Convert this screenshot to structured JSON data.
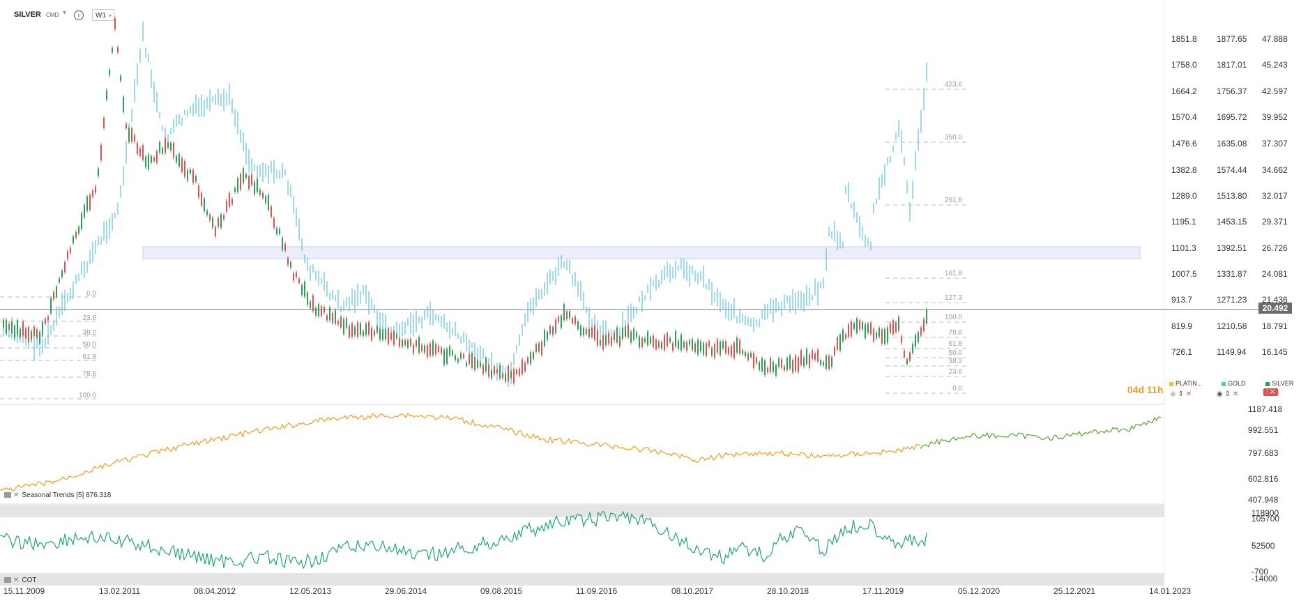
{
  "header": {
    "symbol": "SILVER",
    "market": "CMD",
    "timeframe": "W1",
    "info_icon": "info-icon"
  },
  "price_axis": {
    "col1": [
      "1851.8",
      "1758.0",
      "1664.2",
      "1570.4",
      "1476.6",
      "1382.8",
      "1289.0",
      "1195.1",
      "1101.3",
      "1007.5",
      "913.7",
      "819.9",
      "726.1"
    ],
    "col2": [
      "1877.65",
      "1817.01",
      "1756.37",
      "1695.72",
      "1635.08",
      "1574.44",
      "1513.80",
      "1453.15",
      "1392.51",
      "1331.87",
      "1271.23",
      "1210.58",
      "1149.94"
    ],
    "col3": [
      "47.888",
      "45.243",
      "42.597",
      "39.952",
      "37.307",
      "34.662",
      "32.017",
      "29.371",
      "26.726",
      "24.081",
      "21.436",
      "18.791",
      "16.145"
    ],
    "current_price": "20.492"
  },
  "fib_left": [
    "0.0",
    "23.6",
    "38.2",
    "50.0",
    "61.8",
    "78.6",
    "100.0"
  ],
  "fib_right": [
    "423.6",
    "350.0",
    "261.8",
    "161.8",
    "127.3",
    "100.0",
    "78.6",
    "61.8",
    "50.0",
    "38.2",
    "23.6",
    "0.0"
  ],
  "legend": {
    "items": [
      {
        "name": "PLATIN...",
        "color": "#f5c518"
      },
      {
        "name": "GOLD",
        "color": "#5bc0de"
      },
      {
        "name": "SILVER",
        "color": "#2e9e5b"
      }
    ]
  },
  "countdown": "04d 11h",
  "seasonal": {
    "label": "Seasonal   Trends  [5]  876.318",
    "axis": [
      "1187.418",
      "992.551",
      "797.683",
      "602.816",
      "407.948"
    ]
  },
  "cot": {
    "label": "COT",
    "axis": [
      "118900",
      "105700",
      "52500",
      "-700",
      "-14000"
    ]
  },
  "dates": [
    "15.11.2009",
    "13.02.2011",
    "08.04.2012",
    "12.05.2013",
    "29.06.2014",
    "09.08.2015",
    "11.09.2016",
    "08.10.2017",
    "28.10.2018",
    "17.11.2019",
    "05.12.2020",
    "25.12.2021",
    "14.01.2023"
  ],
  "colors": {
    "gold": "#5bc0de",
    "silver_up": "#2e9e5b",
    "silver_down": "#d9534f",
    "seasonal_past": "#f39c1f",
    "seasonal_future": "#5aa02c",
    "cot": "#1fa67a",
    "zone": "#c9cdf2"
  }
}
